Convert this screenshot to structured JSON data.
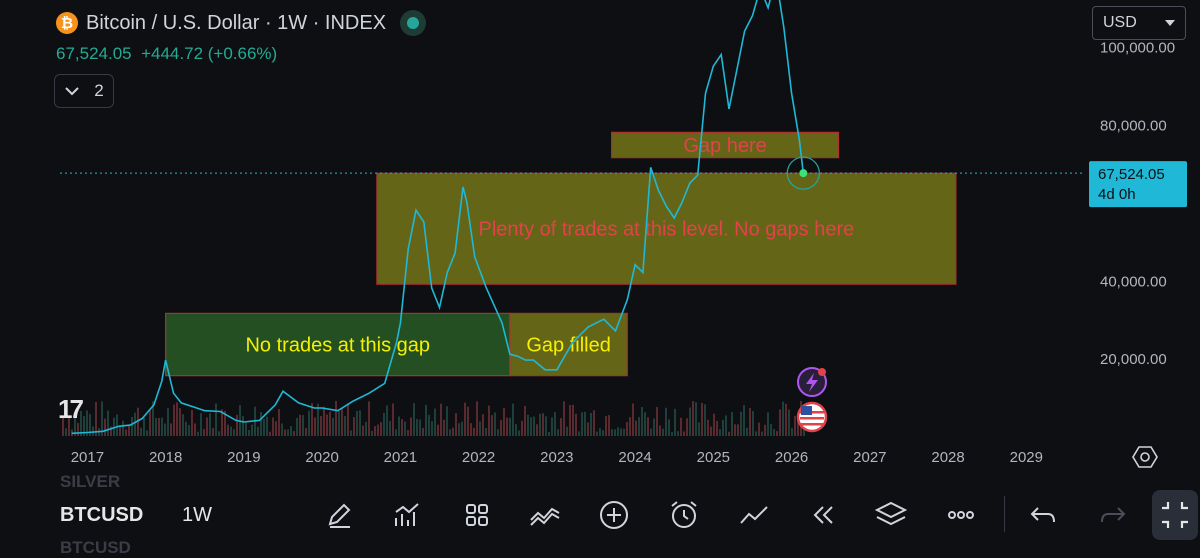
{
  "header": {
    "logo_glyph": "₿",
    "title": "Bitcoin / U.S. Dollar · 1W · INDEX",
    "price": "67,524.05",
    "change": "+444.72 (+0.66%)",
    "indicators_count": "2"
  },
  "currency_selector": {
    "value": "USD"
  },
  "tv_logo": "17",
  "toolbar": {
    "ghost_top": "SILVER",
    "symbol": "BTCUSD",
    "interval": "1W",
    "ghost_bottom": "BTCUSD",
    "icons": [
      "pencil-icon",
      "chart-indicators-icon",
      "grid-icon",
      "compare-icon",
      "add-icon",
      "alarm-icon",
      "line-chart-icon",
      "replay-icon",
      "layers-icon",
      "more-icon",
      "undo-icon",
      "redo-icon",
      "fullscreen-icon"
    ]
  },
  "colors": {
    "background": "#0e0f12",
    "line": "#1fb8d6",
    "price_label_bg": "#1fb8d6",
    "zone_fill": "#8a8a1a",
    "zone_border": "#b03030",
    "annotation_red": "#e2424a",
    "annotation_yellow": "#f4f000",
    "green_fill": "#2e6b2a"
  },
  "chart_data": {
    "type": "line",
    "title": "Bitcoin / U.S. Dollar · 1W · INDEX",
    "xlabel": "",
    "ylabel": "",
    "grid": false,
    "xlim": [
      2016.65,
      2029.75
    ],
    "ylim": [
      0,
      112000
    ],
    "x_ticks": [
      "2017",
      "2018",
      "2019",
      "2020",
      "2021",
      "2022",
      "2023",
      "2024",
      "2025",
      "2026",
      "2027",
      "2028",
      "2029"
    ],
    "y_ticks": [
      {
        "value": 100000,
        "label": "100,000.00"
      },
      {
        "value": 80000,
        "label": "80,000.00"
      },
      {
        "value": 40000,
        "label": "40,000.00"
      },
      {
        "value": 20000,
        "label": "20,000.00"
      }
    ],
    "last_price": {
      "value": 67524.05,
      "label": "67,524.05",
      "countdown": "4d 0h"
    },
    "series": [
      {
        "x": [
          2016.8,
          2017.0,
          2017.2,
          2017.4,
          2017.55,
          2017.7,
          2017.85,
          2017.95,
          2018.0,
          2018.1,
          2018.2,
          2018.35,
          2018.5,
          2018.7,
          2018.9,
          2019.0,
          2019.2,
          2019.4,
          2019.5,
          2019.7,
          2019.9,
          2020.0,
          2020.2,
          2020.4,
          2020.6,
          2020.8,
          2020.95,
          2021.0,
          2021.1,
          2021.2,
          2021.3,
          2021.4,
          2021.5,
          2021.6,
          2021.7,
          2021.8,
          2021.85,
          2021.95,
          2022.1,
          2022.3,
          2022.4,
          2022.5,
          2022.6,
          2022.7,
          2022.85,
          2023.0,
          2023.2,
          2023.4,
          2023.6,
          2023.75,
          2023.9,
          2024.0,
          2024.1,
          2024.2,
          2024.3,
          2024.4,
          2024.5,
          2024.6,
          2024.7,
          2024.8,
          2024.9,
          2025.0,
          2025.1,
          2025.2,
          2025.3,
          2025.4,
          2025.5,
          2025.6,
          2025.7,
          2025.8,
          2025.9,
          2026.0,
          2026.1,
          2026.15
        ],
        "y": [
          700,
          900,
          1200,
          2500,
          2800,
          4500,
          8000,
          14000,
          19500,
          11000,
          8500,
          7500,
          6500,
          6300,
          4000,
          3600,
          4000,
          8000,
          11500,
          8500,
          7200,
          7200,
          6500,
          9000,
          11000,
          13500,
          24000,
          29000,
          48000,
          58000,
          55000,
          38000,
          33000,
          42000,
          47000,
          64000,
          60000,
          46000,
          38000,
          29000,
          21000,
          20500,
          19500,
          19500,
          17000,
          17000,
          24000,
          28000,
          30000,
          27000,
          35000,
          44000,
          42000,
          69000,
          63000,
          59000,
          56000,
          60000,
          65000,
          67000,
          88000,
          95000,
          98000,
          84000,
          94000,
          104000,
          108000,
          115000,
          110000,
          118000,
          105000,
          88000,
          76000,
          67524
        ]
      }
    ]
  },
  "annotations": [
    {
      "name": "gap-here-zone",
      "label": "Gap here",
      "x0": 2023.7,
      "x1": 2026.6,
      "y0": 71500,
      "y1": 78000,
      "fill": "#8a8a1a",
      "text_color": "#e2424a"
    },
    {
      "name": "plenty-trades-zone",
      "label": "Plenty of trades at this level. No gaps here",
      "x0": 2020.7,
      "x1": 2028.1,
      "y0": 39000,
      "y1": 67500,
      "fill": "#8a8a1a",
      "text_color": "#e2424a"
    },
    {
      "name": "no-trades-zone",
      "label": "No trades at this gap",
      "x0": 2018.0,
      "x1": 2022.4,
      "y0": 15500,
      "y1": 31500,
      "fill": "#2e6b2a",
      "text_color": "#f4f000"
    },
    {
      "name": "gap-filled-zone",
      "label": "Gap filled",
      "x0": 2022.4,
      "x1": 2023.9,
      "y0": 15500,
      "y1": 31500,
      "fill": "#8a8a1a",
      "text_color": "#f4f000"
    }
  ]
}
